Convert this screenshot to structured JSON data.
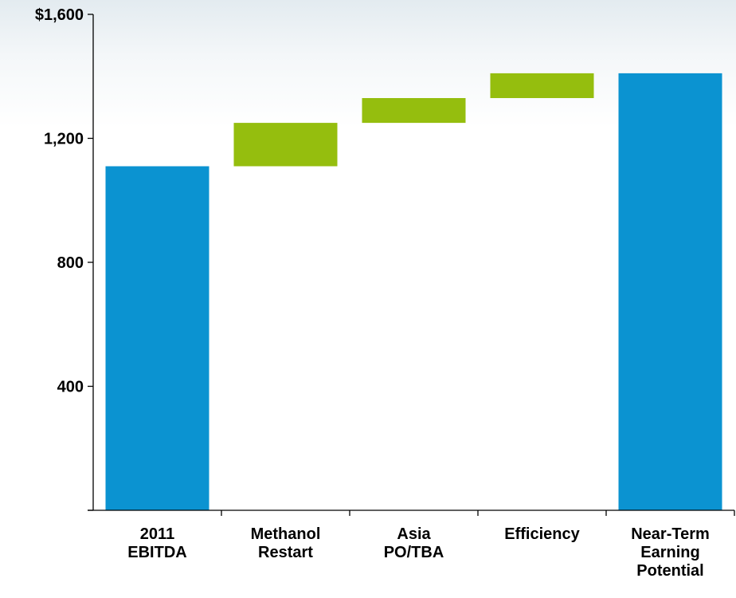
{
  "chart_data": {
    "type": "bar",
    "subtype": "waterfall",
    "categories": [
      "2011\nEBITDA",
      "Methanol\nRestart",
      "Asia\nPO/TBA",
      "Efficiency",
      "Near-Term\nEarning\nPotential"
    ],
    "bars": [
      {
        "kind": "total",
        "start": 0,
        "end": 1110,
        "color": "#0b93d1"
      },
      {
        "kind": "increment",
        "start": 1110,
        "end": 1250,
        "color": "#95be0e"
      },
      {
        "kind": "increment",
        "start": 1250,
        "end": 1330,
        "color": "#95be0e"
      },
      {
        "kind": "increment",
        "start": 1330,
        "end": 1410,
        "color": "#95be0e"
      },
      {
        "kind": "total",
        "start": 0,
        "end": 1410,
        "color": "#0b93d1"
      }
    ],
    "yticks": [
      0,
      400,
      800,
      1200,
      1600
    ],
    "ytick_labels": [
      "",
      "400",
      "800",
      "1,200",
      "$1,600"
    ],
    "ylim": [
      0,
      1600
    ],
    "title": "",
    "xlabel": "",
    "ylabel": "",
    "grid": false,
    "legend": "none"
  }
}
